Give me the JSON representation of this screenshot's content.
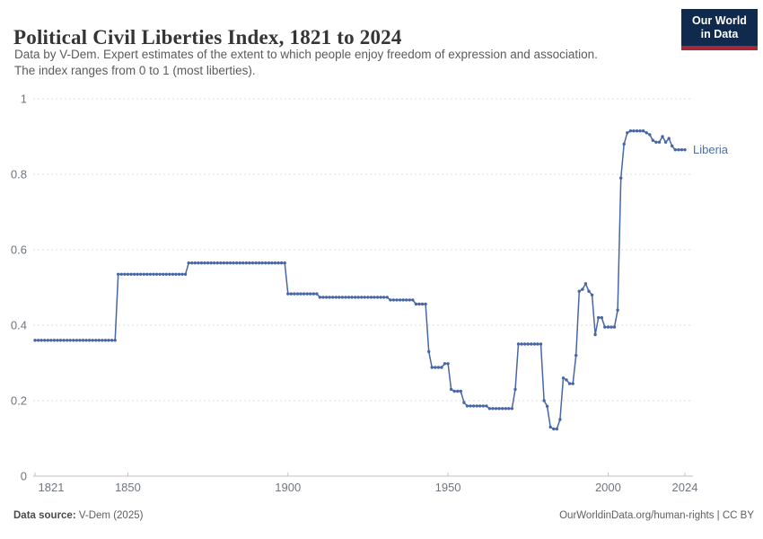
{
  "header": {
    "title": "Political Civil Liberties Index, 1821 to 2024",
    "subtitle_line1": "Data by V-Dem. Expert estimates of the extent to which people enjoy freedom of expression and association.",
    "subtitle_line2": "The index ranges from 0 to 1 (most liberties).",
    "logo_line1": "Our World",
    "logo_line2": "in Data"
  },
  "chart_data": {
    "type": "line",
    "title": "Political Civil Liberties Index, 1821 to 2024",
    "entity_label": "Liberia",
    "line_color": "#4666a5",
    "label_color": "#4d6fa4",
    "grid": "dashed-horizontal",
    "legend_position": "end-of-line",
    "x_start_year": 1821,
    "x_end_year": 2024,
    "ylim": [
      0,
      1
    ],
    "y_ticks": [
      {
        "v": 1,
        "label": "1"
      },
      {
        "v": 0.8,
        "label": "0.8"
      },
      {
        "v": 0.6,
        "label": "0.6"
      },
      {
        "v": 0.4,
        "label": "0.4"
      },
      {
        "v": 0.2,
        "label": "0.2"
      },
      {
        "v": 0,
        "label": "0"
      }
    ],
    "x_ticks": [
      1821,
      1850,
      1900,
      1950,
      2000,
      2024
    ],
    "series": [
      {
        "name": "Liberia",
        "values": [
          0.36,
          0.36,
          0.36,
          0.36,
          0.36,
          0.36,
          0.36,
          0.36,
          0.36,
          0.36,
          0.36,
          0.36,
          0.36,
          0.36,
          0.36,
          0.36,
          0.36,
          0.36,
          0.36,
          0.36,
          0.36,
          0.36,
          0.36,
          0.36,
          0.36,
          0.36,
          0.535,
          0.535,
          0.535,
          0.535,
          0.535,
          0.535,
          0.535,
          0.535,
          0.535,
          0.535,
          0.535,
          0.535,
          0.535,
          0.535,
          0.535,
          0.535,
          0.535,
          0.535,
          0.535,
          0.535,
          0.535,
          0.535,
          0.565,
          0.565,
          0.565,
          0.565,
          0.565,
          0.565,
          0.565,
          0.565,
          0.565,
          0.565,
          0.565,
          0.565,
          0.565,
          0.565,
          0.565,
          0.565,
          0.565,
          0.565,
          0.565,
          0.565,
          0.565,
          0.565,
          0.565,
          0.565,
          0.565,
          0.565,
          0.565,
          0.565,
          0.565,
          0.565,
          0.565,
          0.483,
          0.483,
          0.483,
          0.483,
          0.483,
          0.483,
          0.483,
          0.483,
          0.483,
          0.483,
          0.474,
          0.474,
          0.474,
          0.474,
          0.474,
          0.474,
          0.474,
          0.474,
          0.474,
          0.474,
          0.474,
          0.474,
          0.474,
          0.474,
          0.474,
          0.474,
          0.474,
          0.474,
          0.474,
          0.474,
          0.474,
          0.474,
          0.467,
          0.467,
          0.467,
          0.467,
          0.467,
          0.467,
          0.467,
          0.467,
          0.456,
          0.456,
          0.456,
          0.456,
          0.33,
          0.288,
          0.288,
          0.288,
          0.288,
          0.298,
          0.298,
          0.23,
          0.225,
          0.225,
          0.225,
          0.195,
          0.186,
          0.186,
          0.186,
          0.186,
          0.186,
          0.186,
          0.186,
          0.179,
          0.179,
          0.179,
          0.179,
          0.179,
          0.179,
          0.179,
          0.179,
          0.23,
          0.35,
          0.35,
          0.35,
          0.35,
          0.35,
          0.35,
          0.35,
          0.35,
          0.2,
          0.185,
          0.13,
          0.125,
          0.125,
          0.15,
          0.26,
          0.255,
          0.245,
          0.245,
          0.32,
          0.49,
          0.495,
          0.51,
          0.49,
          0.48,
          0.375,
          0.42,
          0.42,
          0.395,
          0.395,
          0.395,
          0.395,
          0.44,
          0.79,
          0.88,
          0.91,
          0.915,
          0.915,
          0.915,
          0.915,
          0.915,
          0.91,
          0.905,
          0.89,
          0.885,
          0.885,
          0.9,
          0.885,
          0.895,
          0.875,
          0.865,
          0.865,
          0.865,
          0.865
        ]
      }
    ]
  },
  "footer": {
    "source_label": "Data source:",
    "source_value": " V-Dem (2025)",
    "credit": "OurWorldinData.org/human-rights | CC BY"
  }
}
